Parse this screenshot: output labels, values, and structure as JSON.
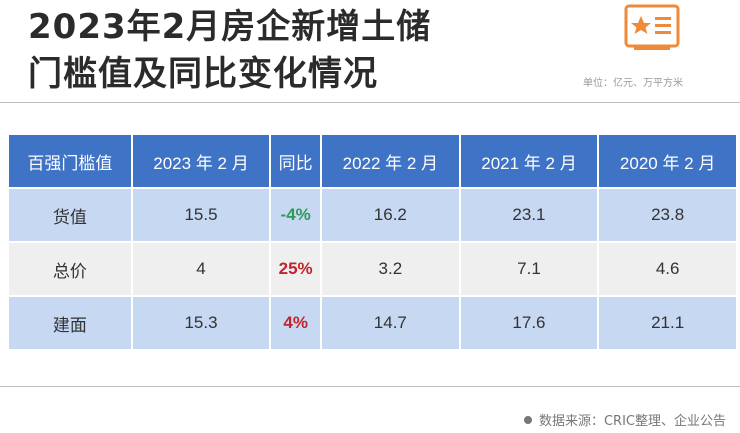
{
  "title": {
    "line1": "2023年2月房企新增土储",
    "line2": "门槛值及同比变化情况"
  },
  "unit": "单位：亿元、万平方米",
  "table": {
    "headers": [
      "百强门槛值",
      "2023 年 2 月",
      "同比",
      "2022 年 2 月",
      "2021 年 2 月",
      "2020 年 2 月"
    ],
    "rows": [
      {
        "label": "货值",
        "y2023": "15.5",
        "yoy": "-4%",
        "y2022": "16.2",
        "y2021": "23.1",
        "y2020": "23.8"
      },
      {
        "label": "总价",
        "y2023": "4",
        "yoy": "25%",
        "y2022": "3.2",
        "y2021": "7.1",
        "y2020": "4.6"
      },
      {
        "label": "建面",
        "y2023": "15.3",
        "yoy": "4%",
        "y2022": "14.7",
        "y2021": "17.6",
        "y2020": "21.1"
      }
    ]
  },
  "source": "数据来源：CRIC整理、企业公告",
  "colors": {
    "header_bg": "#3f73c6",
    "row_blue": "#c7d8f2",
    "row_grey": "#efefef",
    "negative": "#2e9a58",
    "positive": "#c0252b",
    "logo": "#ee8a3a"
  },
  "icons": {
    "logo": "star-document-icon",
    "source_bullet": "bullet-dot-icon"
  }
}
